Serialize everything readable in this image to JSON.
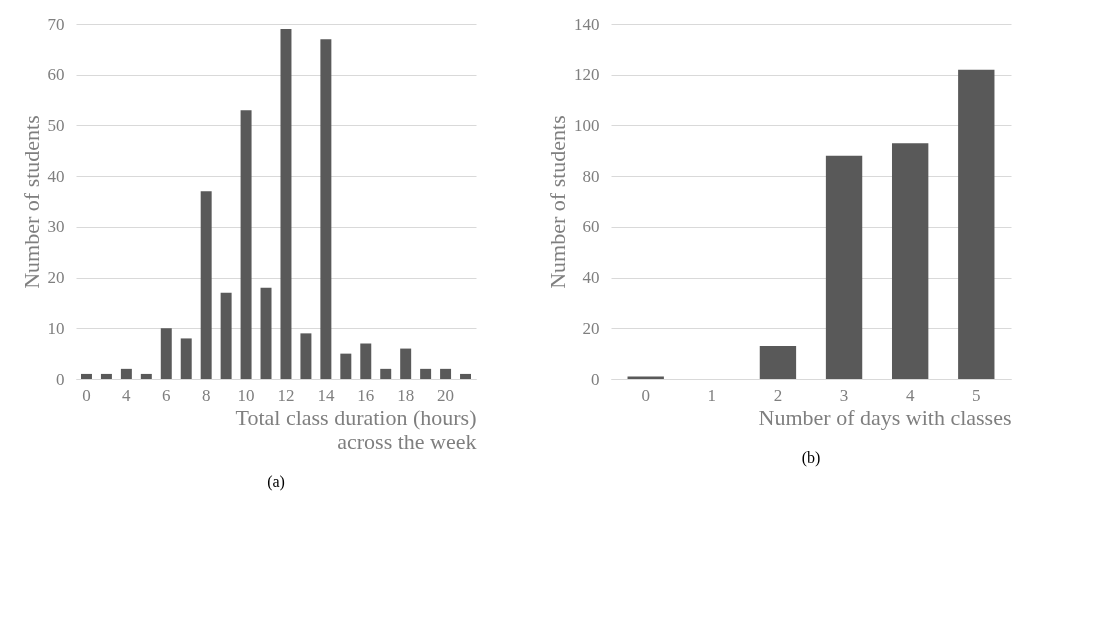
{
  "chart_data": [
    {
      "type": "bar",
      "categories": [
        "0",
        null,
        "4",
        null,
        "6",
        null,
        "8",
        null,
        "10",
        null,
        "12",
        null,
        "14",
        null,
        "16",
        null,
        "18",
        null,
        "20",
        null
      ],
      "values": [
        1,
        1,
        2,
        1,
        10,
        8,
        37,
        17,
        53,
        18,
        69,
        9,
        67,
        5,
        7,
        2,
        6,
        2,
        2,
        1
      ],
      "color": "#595959",
      "xlabel": "Total class duration (hours) across the week",
      "ylabel": "Number of students",
      "ylim": [
        0,
        70
      ],
      "yticks": [
        0,
        10,
        20,
        30,
        40,
        50,
        60,
        70
      ],
      "grid": "y",
      "annotations": [
        "(a)"
      ]
    },
    {
      "type": "bar",
      "categories": [
        "0",
        "1",
        "2",
        "3",
        "4",
        "5"
      ],
      "values": [
        1,
        0,
        13,
        88,
        93,
        122
      ],
      "color": "#595959",
      "xlabel": "Number of days with classes",
      "ylabel": "Number of students",
      "ylim": [
        0,
        140
      ],
      "yticks": [
        0,
        20,
        40,
        60,
        80,
        100,
        120,
        140
      ],
      "grid": "y",
      "annotations": [
        "(b)"
      ]
    }
  ]
}
